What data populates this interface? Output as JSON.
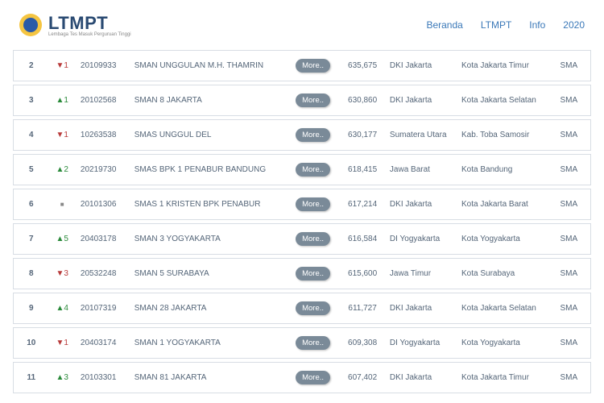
{
  "brand": {
    "title": "LTMPT",
    "subtitle": "Lembaga Tes Masuk Perguruan Tinggi"
  },
  "nav": [
    "Beranda",
    "LTMPT",
    "Info",
    "2020"
  ],
  "colors": {
    "brand_text": "#2a4a72",
    "nav_link": "#3a78b8",
    "row_border": "#d8dde4",
    "more_btn_bg": "#7a8a98",
    "arrow_up": "#2a8a3a",
    "arrow_down": "#b83a3a"
  },
  "more_label": "More..",
  "rows": [
    {
      "rank": "2",
      "change_dir": "down",
      "change_val": "1",
      "npsn": "20109933",
      "name": "SMAN UNGGULAN M.H. THAMRIN",
      "score": "635,675",
      "prov": "DKI Jakarta",
      "city": "Kota Jakarta Timur",
      "type": "SMA"
    },
    {
      "rank": "3",
      "change_dir": "up",
      "change_val": "1",
      "npsn": "20102568",
      "name": "SMAN 8 JAKARTA",
      "score": "630,860",
      "prov": "DKI Jakarta",
      "city": "Kota Jakarta Selatan",
      "type": "SMA"
    },
    {
      "rank": "4",
      "change_dir": "down",
      "change_val": "1",
      "npsn": "10263538",
      "name": "SMAS UNGGUL DEL",
      "score": "630,177",
      "prov": "Sumatera Utara",
      "city": "Kab. Toba Samosir",
      "type": "SMA"
    },
    {
      "rank": "5",
      "change_dir": "up",
      "change_val": "2",
      "npsn": "20219730",
      "name": "SMAS BPK 1 PENABUR BANDUNG",
      "score": "618,415",
      "prov": "Jawa Barat",
      "city": "Kota Bandung",
      "type": "SMA"
    },
    {
      "rank": "6",
      "change_dir": "none",
      "change_val": "",
      "npsn": "20101306",
      "name": "SMAS 1 KRISTEN BPK PENABUR",
      "score": "617,214",
      "prov": "DKI Jakarta",
      "city": "Kota Jakarta Barat",
      "type": "SMA"
    },
    {
      "rank": "7",
      "change_dir": "up",
      "change_val": "5",
      "npsn": "20403178",
      "name": "SMAN 3 YOGYAKARTA",
      "score": "616,584",
      "prov": "DI Yogyakarta",
      "city": "Kota Yogyakarta",
      "type": "SMA"
    },
    {
      "rank": "8",
      "change_dir": "down",
      "change_val": "3",
      "npsn": "20532248",
      "name": "SMAN 5 SURABAYA",
      "score": "615,600",
      "prov": "Jawa Timur",
      "city": "Kota Surabaya",
      "type": "SMA"
    },
    {
      "rank": "9",
      "change_dir": "up",
      "change_val": "4",
      "npsn": "20107319",
      "name": "SMAN 28 JAKARTA",
      "score": "611,727",
      "prov": "DKI Jakarta",
      "city": "Kota Jakarta Selatan",
      "type": "SMA"
    },
    {
      "rank": "10",
      "change_dir": "down",
      "change_val": "1",
      "npsn": "20403174",
      "name": "SMAN 1 YOGYAKARTA",
      "score": "609,308",
      "prov": "DI Yogyakarta",
      "city": "Kota Yogyakarta",
      "type": "SMA"
    },
    {
      "rank": "11",
      "change_dir": "up",
      "change_val": "3",
      "npsn": "20103301",
      "name": "SMAN 81 JAKARTA",
      "score": "607,402",
      "prov": "DKI Jakarta",
      "city": "Kota Jakarta Timur",
      "type": "SMA"
    }
  ]
}
